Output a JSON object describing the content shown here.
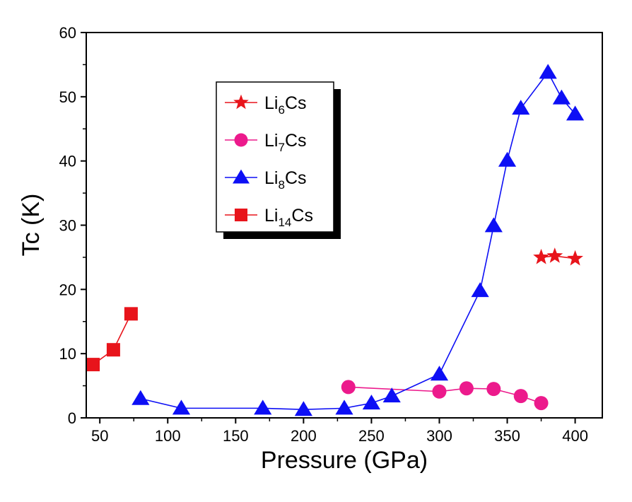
{
  "chart_data": {
    "type": "line",
    "title": "",
    "xlabel": "Pressure (GPa)",
    "ylabel": "Tc (K)",
    "xlim": [
      40,
      420
    ],
    "ylim": [
      0,
      60
    ],
    "xticks": [
      50,
      100,
      150,
      200,
      250,
      300,
      350,
      400
    ],
    "yticks": [
      0,
      10,
      20,
      30,
      40,
      50,
      60
    ],
    "xtick_labels": [
      "50",
      "100",
      "150",
      "200",
      "250",
      "300",
      "350",
      "400"
    ],
    "ytick_labels": [
      "0",
      "10",
      "20",
      "30",
      "40",
      "50",
      "60"
    ],
    "grid": false,
    "legend_position": "upper-left-center",
    "series": [
      {
        "name": "Li6Cs",
        "label_base": "Li",
        "label_sub": "6",
        "label_tail": "Cs",
        "marker": "star",
        "color": "#e8141b",
        "x": [
          375,
          385,
          400
        ],
        "y": [
          25.0,
          25.2,
          24.8
        ]
      },
      {
        "name": "Li7Cs",
        "label_base": "Li",
        "label_sub": "7",
        "label_tail": "Cs",
        "marker": "circle",
        "color": "#ec1a8c",
        "x": [
          233,
          300,
          320,
          340,
          360,
          375
        ],
        "y": [
          4.8,
          4.1,
          4.6,
          4.5,
          3.4,
          2.3
        ]
      },
      {
        "name": "Li8Cs",
        "label_base": "Li",
        "label_sub": "8",
        "label_tail": "Cs",
        "marker": "triangle",
        "color": "#0d0ff5",
        "x": [
          80,
          110,
          170,
          200,
          230,
          250,
          265,
          300,
          330,
          340,
          350,
          360,
          380,
          390,
          400
        ],
        "y": [
          3.0,
          1.5,
          1.5,
          1.3,
          1.5,
          2.3,
          3.4,
          6.8,
          19.8,
          29.9,
          40.1,
          48.2,
          53.8,
          49.8,
          47.3
        ]
      },
      {
        "name": "Li14Cs",
        "label_base": "Li",
        "label_sub": "14",
        "label_tail": "Cs",
        "marker": "square",
        "color": "#e8141b",
        "x": [
          45,
          60,
          73
        ],
        "y": [
          8.3,
          10.6,
          16.2
        ]
      }
    ]
  }
}
